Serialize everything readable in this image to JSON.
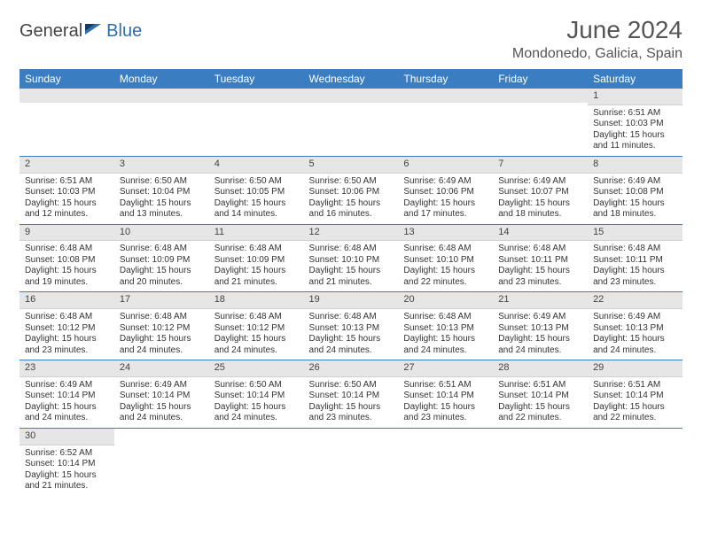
{
  "logo": {
    "text1": "General",
    "text2": "Blue"
  },
  "title": "June 2024",
  "location": "Mondonedo, Galicia, Spain",
  "weekdays": [
    "Sunday",
    "Monday",
    "Tuesday",
    "Wednesday",
    "Thursday",
    "Friday",
    "Saturday"
  ],
  "colors": {
    "header_bg": "#3a7ec1",
    "header_text": "#ffffff",
    "daynum_bg": "#e6e6e6",
    "row_border": "#3a7ec1",
    "logo_blue": "#2f6fb0"
  },
  "weeks": [
    [
      null,
      null,
      null,
      null,
      null,
      null,
      {
        "n": "1",
        "sunrise": "Sunrise: 6:51 AM",
        "sunset": "Sunset: 10:03 PM",
        "day1": "Daylight: 15 hours",
        "day2": "and 11 minutes."
      }
    ],
    [
      {
        "n": "2",
        "sunrise": "Sunrise: 6:51 AM",
        "sunset": "Sunset: 10:03 PM",
        "day1": "Daylight: 15 hours",
        "day2": "and 12 minutes."
      },
      {
        "n": "3",
        "sunrise": "Sunrise: 6:50 AM",
        "sunset": "Sunset: 10:04 PM",
        "day1": "Daylight: 15 hours",
        "day2": "and 13 minutes."
      },
      {
        "n": "4",
        "sunrise": "Sunrise: 6:50 AM",
        "sunset": "Sunset: 10:05 PM",
        "day1": "Daylight: 15 hours",
        "day2": "and 14 minutes."
      },
      {
        "n": "5",
        "sunrise": "Sunrise: 6:50 AM",
        "sunset": "Sunset: 10:06 PM",
        "day1": "Daylight: 15 hours",
        "day2": "and 16 minutes."
      },
      {
        "n": "6",
        "sunrise": "Sunrise: 6:49 AM",
        "sunset": "Sunset: 10:06 PM",
        "day1": "Daylight: 15 hours",
        "day2": "and 17 minutes."
      },
      {
        "n": "7",
        "sunrise": "Sunrise: 6:49 AM",
        "sunset": "Sunset: 10:07 PM",
        "day1": "Daylight: 15 hours",
        "day2": "and 18 minutes."
      },
      {
        "n": "8",
        "sunrise": "Sunrise: 6:49 AM",
        "sunset": "Sunset: 10:08 PM",
        "day1": "Daylight: 15 hours",
        "day2": "and 18 minutes."
      }
    ],
    [
      {
        "n": "9",
        "sunrise": "Sunrise: 6:48 AM",
        "sunset": "Sunset: 10:08 PM",
        "day1": "Daylight: 15 hours",
        "day2": "and 19 minutes."
      },
      {
        "n": "10",
        "sunrise": "Sunrise: 6:48 AM",
        "sunset": "Sunset: 10:09 PM",
        "day1": "Daylight: 15 hours",
        "day2": "and 20 minutes."
      },
      {
        "n": "11",
        "sunrise": "Sunrise: 6:48 AM",
        "sunset": "Sunset: 10:09 PM",
        "day1": "Daylight: 15 hours",
        "day2": "and 21 minutes."
      },
      {
        "n": "12",
        "sunrise": "Sunrise: 6:48 AM",
        "sunset": "Sunset: 10:10 PM",
        "day1": "Daylight: 15 hours",
        "day2": "and 21 minutes."
      },
      {
        "n": "13",
        "sunrise": "Sunrise: 6:48 AM",
        "sunset": "Sunset: 10:10 PM",
        "day1": "Daylight: 15 hours",
        "day2": "and 22 minutes."
      },
      {
        "n": "14",
        "sunrise": "Sunrise: 6:48 AM",
        "sunset": "Sunset: 10:11 PM",
        "day1": "Daylight: 15 hours",
        "day2": "and 23 minutes."
      },
      {
        "n": "15",
        "sunrise": "Sunrise: 6:48 AM",
        "sunset": "Sunset: 10:11 PM",
        "day1": "Daylight: 15 hours",
        "day2": "and 23 minutes."
      }
    ],
    [
      {
        "n": "16",
        "sunrise": "Sunrise: 6:48 AM",
        "sunset": "Sunset: 10:12 PM",
        "day1": "Daylight: 15 hours",
        "day2": "and 23 minutes."
      },
      {
        "n": "17",
        "sunrise": "Sunrise: 6:48 AM",
        "sunset": "Sunset: 10:12 PM",
        "day1": "Daylight: 15 hours",
        "day2": "and 24 minutes."
      },
      {
        "n": "18",
        "sunrise": "Sunrise: 6:48 AM",
        "sunset": "Sunset: 10:12 PM",
        "day1": "Daylight: 15 hours",
        "day2": "and 24 minutes."
      },
      {
        "n": "19",
        "sunrise": "Sunrise: 6:48 AM",
        "sunset": "Sunset: 10:13 PM",
        "day1": "Daylight: 15 hours",
        "day2": "and 24 minutes."
      },
      {
        "n": "20",
        "sunrise": "Sunrise: 6:48 AM",
        "sunset": "Sunset: 10:13 PM",
        "day1": "Daylight: 15 hours",
        "day2": "and 24 minutes."
      },
      {
        "n": "21",
        "sunrise": "Sunrise: 6:49 AM",
        "sunset": "Sunset: 10:13 PM",
        "day1": "Daylight: 15 hours",
        "day2": "and 24 minutes."
      },
      {
        "n": "22",
        "sunrise": "Sunrise: 6:49 AM",
        "sunset": "Sunset: 10:13 PM",
        "day1": "Daylight: 15 hours",
        "day2": "and 24 minutes."
      }
    ],
    [
      {
        "n": "23",
        "sunrise": "Sunrise: 6:49 AM",
        "sunset": "Sunset: 10:14 PM",
        "day1": "Daylight: 15 hours",
        "day2": "and 24 minutes."
      },
      {
        "n": "24",
        "sunrise": "Sunrise: 6:49 AM",
        "sunset": "Sunset: 10:14 PM",
        "day1": "Daylight: 15 hours",
        "day2": "and 24 minutes."
      },
      {
        "n": "25",
        "sunrise": "Sunrise: 6:50 AM",
        "sunset": "Sunset: 10:14 PM",
        "day1": "Daylight: 15 hours",
        "day2": "and 24 minutes."
      },
      {
        "n": "26",
        "sunrise": "Sunrise: 6:50 AM",
        "sunset": "Sunset: 10:14 PM",
        "day1": "Daylight: 15 hours",
        "day2": "and 23 minutes."
      },
      {
        "n": "27",
        "sunrise": "Sunrise: 6:51 AM",
        "sunset": "Sunset: 10:14 PM",
        "day1": "Daylight: 15 hours",
        "day2": "and 23 minutes."
      },
      {
        "n": "28",
        "sunrise": "Sunrise: 6:51 AM",
        "sunset": "Sunset: 10:14 PM",
        "day1": "Daylight: 15 hours",
        "day2": "and 22 minutes."
      },
      {
        "n": "29",
        "sunrise": "Sunrise: 6:51 AM",
        "sunset": "Sunset: 10:14 PM",
        "day1": "Daylight: 15 hours",
        "day2": "and 22 minutes."
      }
    ],
    [
      {
        "n": "30",
        "sunrise": "Sunrise: 6:52 AM",
        "sunset": "Sunset: 10:14 PM",
        "day1": "Daylight: 15 hours",
        "day2": "and 21 minutes."
      },
      null,
      null,
      null,
      null,
      null,
      null
    ]
  ]
}
